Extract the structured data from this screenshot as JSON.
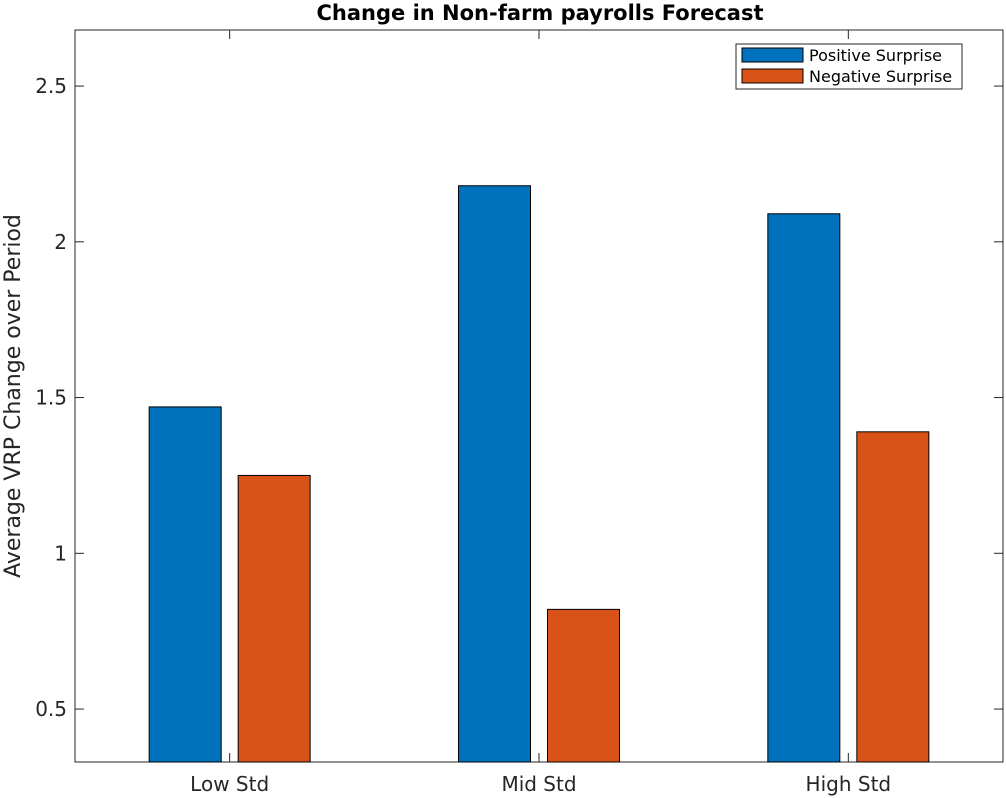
{
  "chart_data": {
    "type": "bar",
    "title": "Change in Non-farm payrolls Forecast",
    "xlabel": "",
    "ylabel": "Average VRP Change over Period",
    "categories": [
      "Low Std",
      "Mid Std",
      "High Std"
    ],
    "series": [
      {
        "name": "Positive Surprise",
        "color": "#0072BD",
        "values": [
          1.47,
          2.18,
          2.09
        ]
      },
      {
        "name": "Negative Surprise",
        "color": "#D95319",
        "values": [
          1.25,
          0.82,
          1.39
        ]
      }
    ],
    "ylim": [
      0.33,
      2.68
    ],
    "yticks": [
      0.5,
      1,
      1.5,
      2,
      2.5
    ],
    "ytick_labels": [
      "0.5",
      "1",
      "1.5",
      "2",
      "2.5"
    ],
    "grid": false,
    "legend_position": "top-right"
  }
}
